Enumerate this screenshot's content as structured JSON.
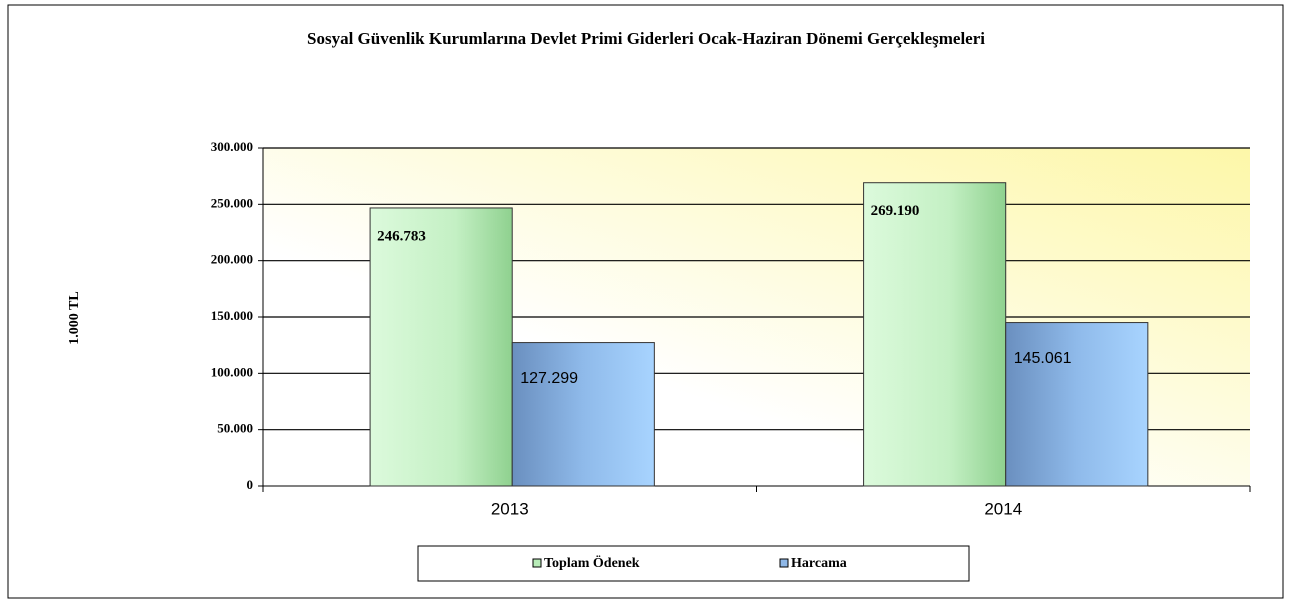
{
  "chart_data": {
    "type": "bar",
    "title": "Sosyal Güvenlik Kurumlarına Devlet Primi Giderleri Ocak-Haziran Dönemi Gerçekleşmeleri",
    "y_label": "1.000 TL",
    "categories": [
      "2013",
      "2014"
    ],
    "series": [
      {
        "name": "Toplam Ödenek",
        "color": "#b8ecb8",
        "values": [
          246783,
          269190
        ],
        "value_labels": [
          "246.783",
          "269.190"
        ]
      },
      {
        "name": "Harcama",
        "color": "#8fb8e8",
        "values": [
          127299,
          145061
        ],
        "value_labels": [
          "127.299",
          "145.061"
        ]
      }
    ],
    "ylim": [
      0,
      300000
    ],
    "yticks": [
      0,
      {
        "value": 50000,
        "label": "50.000"
      },
      {
        "value": 100000,
        "label": "100.000"
      },
      {
        "value": 150000,
        "label": "150.000"
      },
      {
        "value": 200000,
        "label": "200.000"
      },
      {
        "value": 250000,
        "label": "250.000"
      },
      {
        "value": 300000,
        "label": "300.000"
      }
    ],
    "grid": true,
    "legend": "bottom"
  }
}
